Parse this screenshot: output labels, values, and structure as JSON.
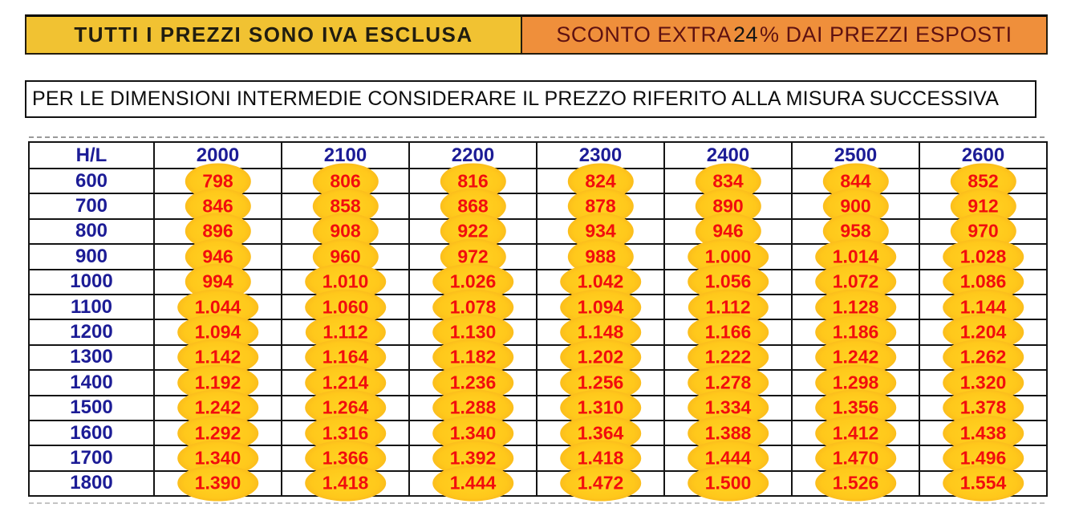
{
  "banners": {
    "vat": {
      "text": "TUTTI I PREZZI SONO IVA ESCLUSA",
      "bg_color": "#f1c232",
      "text_color": "#211d10"
    },
    "discount": {
      "prefix": "SCONTO EXTRA ",
      "value": "24",
      "suffix": "% DAI PREZZI ESPOSTI",
      "bg_color": "#ef8f3b",
      "text_color": "#5e1111",
      "value_color": "#141414"
    }
  },
  "notice": {
    "text": "PER LE DIMENSIONI INTERMEDIE CONSIDERARE IL PREZZO RIFERITO ALLA MISURA SUCCESSIVA"
  },
  "table": {
    "corner_label": "H/L",
    "columns": [
      "2000",
      "2100",
      "2200",
      "2300",
      "2400",
      "2500",
      "2600"
    ],
    "rows": [
      {
        "label": "600",
        "values": [
          "798",
          "806",
          "816",
          "824",
          "834",
          "844",
          "852"
        ]
      },
      {
        "label": "700",
        "values": [
          "846",
          "858",
          "868",
          "878",
          "890",
          "900",
          "912"
        ]
      },
      {
        "label": "800",
        "values": [
          "896",
          "908",
          "922",
          "934",
          "946",
          "958",
          "970"
        ]
      },
      {
        "label": "900",
        "values": [
          "946",
          "960",
          "972",
          "988",
          "1.000",
          "1.014",
          "1.028"
        ]
      },
      {
        "label": "1000",
        "values": [
          "994",
          "1.010",
          "1.026",
          "1.042",
          "1.056",
          "1.072",
          "1.086"
        ]
      },
      {
        "label": "1100",
        "values": [
          "1.044",
          "1.060",
          "1.078",
          "1.094",
          "1.112",
          "1.128",
          "1.144"
        ]
      },
      {
        "label": "1200",
        "values": [
          "1.094",
          "1.112",
          "1.130",
          "1.148",
          "1.166",
          "1.186",
          "1.204"
        ]
      },
      {
        "label": "1300",
        "values": [
          "1.142",
          "1.164",
          "1.182",
          "1.202",
          "1.222",
          "1.242",
          "1.262"
        ]
      },
      {
        "label": "1400",
        "values": [
          "1.192",
          "1.214",
          "1.236",
          "1.256",
          "1.278",
          "1.298",
          "1.320"
        ]
      },
      {
        "label": "1500",
        "values": [
          "1.242",
          "1.264",
          "1.288",
          "1.310",
          "1.334",
          "1.356",
          "1.378"
        ]
      },
      {
        "label": "1600",
        "values": [
          "1.292",
          "1.316",
          "1.340",
          "1.364",
          "1.388",
          "1.412",
          "1.438"
        ]
      },
      {
        "label": "1700",
        "values": [
          "1.340",
          "1.366",
          "1.392",
          "1.418",
          "1.444",
          "1.470",
          "1.496"
        ]
      },
      {
        "label": "1800",
        "values": [
          "1.390",
          "1.418",
          "1.444",
          "1.472",
          "1.500",
          "1.526",
          "1.554"
        ]
      }
    ],
    "label_color": "#1c1c96",
    "price_color": "#f20d0d",
    "highlight_color": "#ffc81b"
  }
}
